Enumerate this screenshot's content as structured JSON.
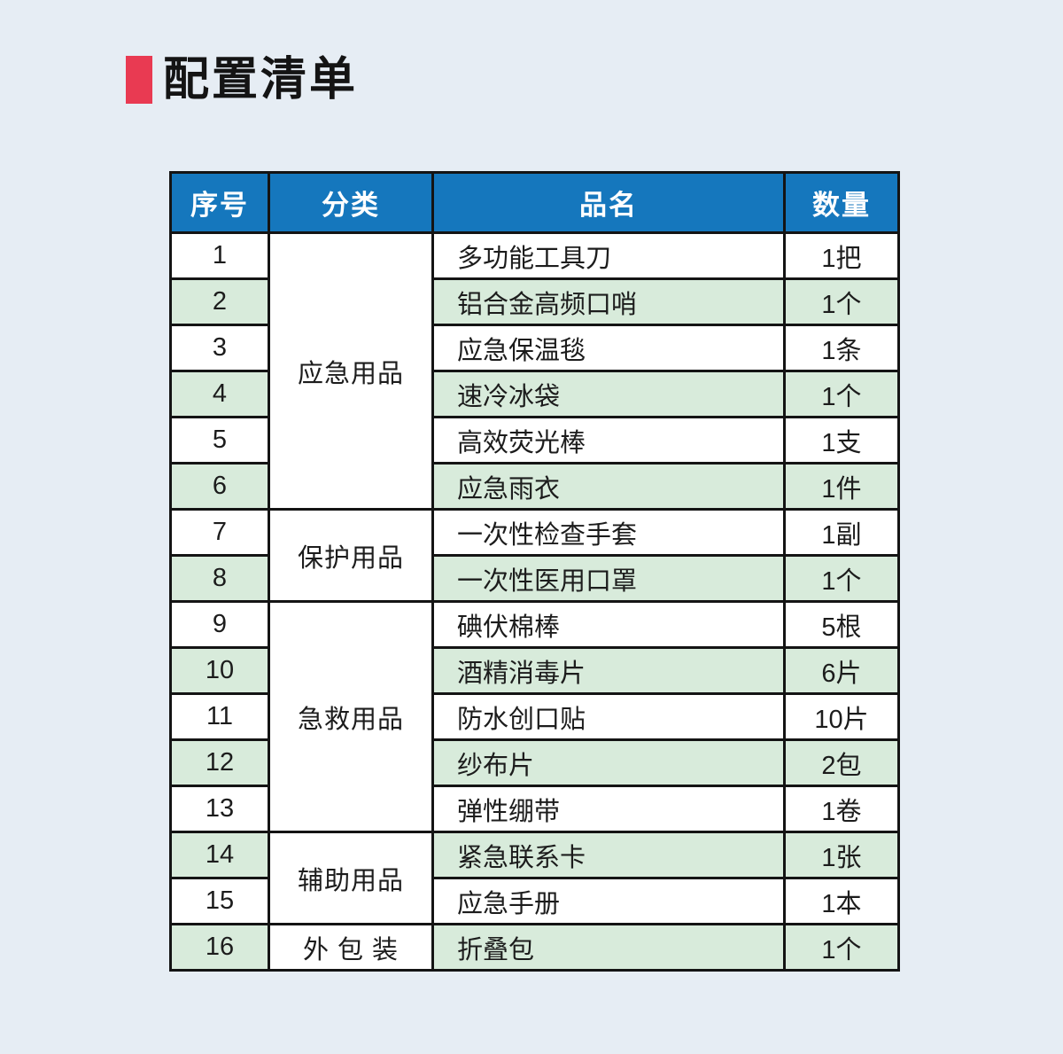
{
  "page": {
    "title": "配置清单"
  },
  "colors": {
    "accent_red": "#e93a52",
    "header_blue": "#1577bd",
    "row_green": "#d8ebdb",
    "page_background": "#e6edf4",
    "border_black": "#141414"
  },
  "table": {
    "headers": {
      "no": "序号",
      "category": "分类",
      "name": "品名",
      "qty": "数量"
    },
    "categories": [
      {
        "label": "应急用品",
        "rowspan": 6
      },
      {
        "label": "保护用品",
        "rowspan": 2
      },
      {
        "label": "急救用品",
        "rowspan": 5
      },
      {
        "label": "辅助用品",
        "rowspan": 2
      },
      {
        "label": "外 包 装",
        "rowspan": 1
      }
    ],
    "rows": [
      {
        "no": "1",
        "name": "多功能工具刀",
        "qty": "1把"
      },
      {
        "no": "2",
        "name": "铝合金高频口哨",
        "qty": "1个"
      },
      {
        "no": "3",
        "name": "应急保温毯",
        "qty": "1条"
      },
      {
        "no": "4",
        "name": "速冷冰袋",
        "qty": "1个"
      },
      {
        "no": "5",
        "name": "高效荧光棒",
        "qty": "1支"
      },
      {
        "no": "6",
        "name": "应急雨衣",
        "qty": "1件"
      },
      {
        "no": "7",
        "name": "一次性检查手套",
        "qty": "1副"
      },
      {
        "no": "8",
        "name": "一次性医用口罩",
        "qty": "1个"
      },
      {
        "no": "9",
        "name": "碘伏棉棒",
        "qty": "5根"
      },
      {
        "no": "10",
        "name": "酒精消毒片",
        "qty": "6片"
      },
      {
        "no": "11",
        "name": "防水创口贴",
        "qty": "10片"
      },
      {
        "no": "12",
        "name": "纱布片",
        "qty": "2包"
      },
      {
        "no": "13",
        "name": "弹性绷带",
        "qty": "1卷"
      },
      {
        "no": "14",
        "name": "紧急联系卡",
        "qty": "1张"
      },
      {
        "no": "15",
        "name": "应急手册",
        "qty": "1本"
      },
      {
        "no": "16",
        "name": "折叠包",
        "qty": "1个"
      }
    ]
  }
}
